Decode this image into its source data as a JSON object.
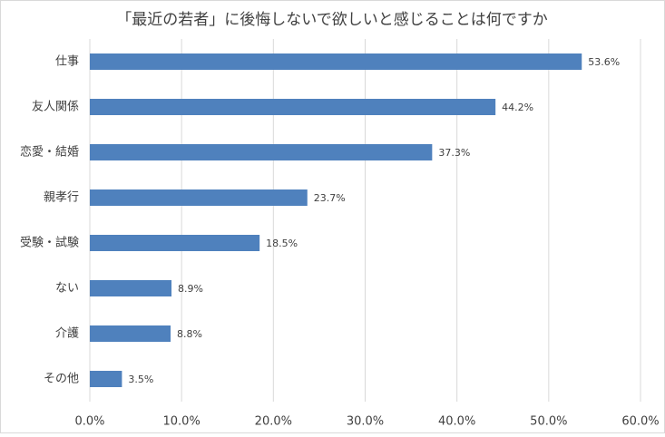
{
  "chart_data": {
    "type": "barh",
    "title": "「最近の若者」に後悔しないで欲しいと感じることは何ですか",
    "categories": [
      "仕事",
      "友人関係",
      "恋愛・結婚",
      "親孝行",
      "受験・試験",
      "ない",
      "介護",
      "その他"
    ],
    "values": [
      53.6,
      44.2,
      37.3,
      23.7,
      18.5,
      8.9,
      8.8,
      3.5
    ],
    "value_labels": [
      "53.6%",
      "44.2%",
      "37.3%",
      "23.7%",
      "18.5%",
      "8.9%",
      "8.8%",
      "3.5%"
    ],
    "color": "#4f81bd",
    "xlim": [
      0,
      60
    ],
    "xticks": [
      {
        "value": 0,
        "label": "0.0%"
      },
      {
        "value": 10,
        "label": "10.0%"
      },
      {
        "value": 20,
        "label": "20.0%"
      },
      {
        "value": 30,
        "label": "30.0%"
      },
      {
        "value": 40,
        "label": "40.0%"
      },
      {
        "value": 50,
        "label": "50.0%"
      },
      {
        "value": 60,
        "label": "60.0%"
      }
    ],
    "grid": true
  }
}
